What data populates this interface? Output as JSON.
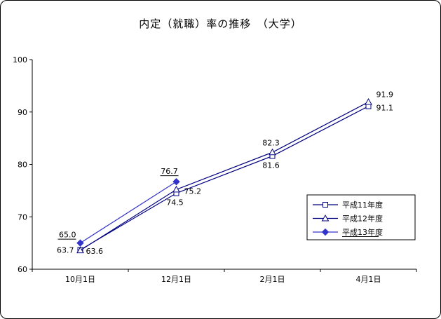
{
  "title": "内定（就職）率の推移　（大学）",
  "chart_data": {
    "type": "line",
    "categories": [
      "10月1日",
      "12月1日",
      "2月1日",
      "4月1日"
    ],
    "series": [
      {
        "name": "平成11年度",
        "marker": "square",
        "color": "#000080",
        "values": [
          63.7,
          74.5,
          81.6,
          91.1
        ],
        "labels": [
          "63.7",
          "74.5",
          "81.6",
          "91.1"
        ]
      },
      {
        "name": "平成12年度",
        "marker": "triangle",
        "color": "#000080",
        "values": [
          63.6,
          75.2,
          82.3,
          91.9
        ],
        "labels": [
          "63.6",
          "75.2",
          "82.3",
          "91.9"
        ]
      },
      {
        "name": "平成13年度",
        "marker": "diamond",
        "color": "#3333CC",
        "values": [
          65.0,
          76.7,
          null,
          null
        ],
        "labels": [
          "65.0",
          "76.7"
        ],
        "labels_underlined": true
      }
    ],
    "ylim": [
      60,
      100
    ],
    "yticks": [
      60,
      70,
      80,
      90,
      100
    ],
    "grid": false,
    "legend_position": "middle-right",
    "legend_underline_last": true
  }
}
